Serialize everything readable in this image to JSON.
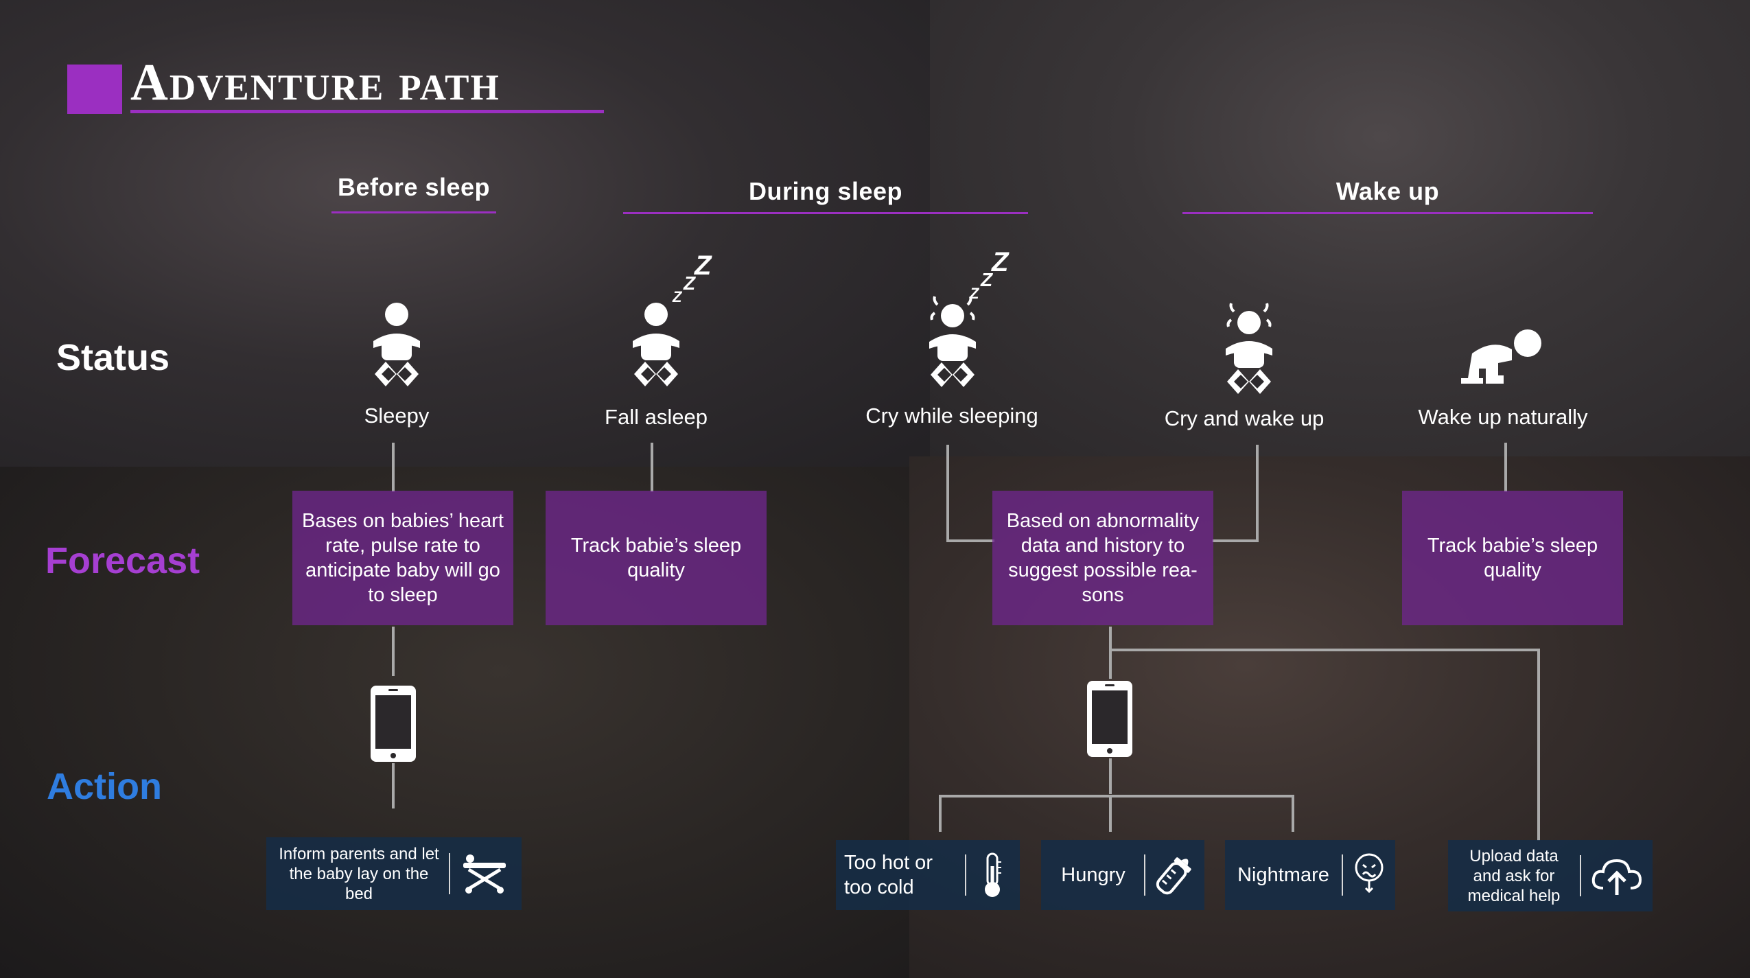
{
  "title": "Adventure path",
  "phases": {
    "before": "Before sleep",
    "during": "During sleep",
    "wake": "Wake up"
  },
  "row_labels": {
    "status": "Status",
    "forecast": "Forecast",
    "action": "Action"
  },
  "status": {
    "sleepy": "Sleepy",
    "fall_asleep": "Fall asleep",
    "cry_sleeping": "Cry while sleeping",
    "cry_wake": "Cry and wake up",
    "wake_naturally": "Wake up naturally"
  },
  "forecast": {
    "box1": "Bases on babies’ heart rate, pulse rate to anticipate baby will go to sleep",
    "box2": "Track babie’s sleep quality",
    "box3": "Based on abnormality data and history to suggest possible rea-sons",
    "box4": "Track babie’s sleep quality"
  },
  "actions": {
    "inform": "Inform parents and let the baby lay on the bed",
    "hot_cold": "Too hot or too cold",
    "hungry": "Hungry",
    "nightmare": "Nightmare",
    "upload": "Upload data and ask for medical help"
  },
  "icons": {
    "baby": "baby-icon",
    "zzz": "zzz-icon",
    "crying": "crying-baby-icon",
    "crawling": "crawling-baby-icon",
    "phone": "phone-icon",
    "bed": "bed-icon",
    "thermometer": "thermometer-icon",
    "bottle": "baby-bottle-icon",
    "nightmare": "nightmare-face-icon",
    "upload": "cloud-upload-icon"
  },
  "colors": {
    "accent": "#9b2fc1",
    "forecast_label": "#a63fd2",
    "action_label": "#2f7de0",
    "forecast_box": "#6e268c",
    "action_box": "#162c46",
    "connector": "#a9a9a9"
  }
}
